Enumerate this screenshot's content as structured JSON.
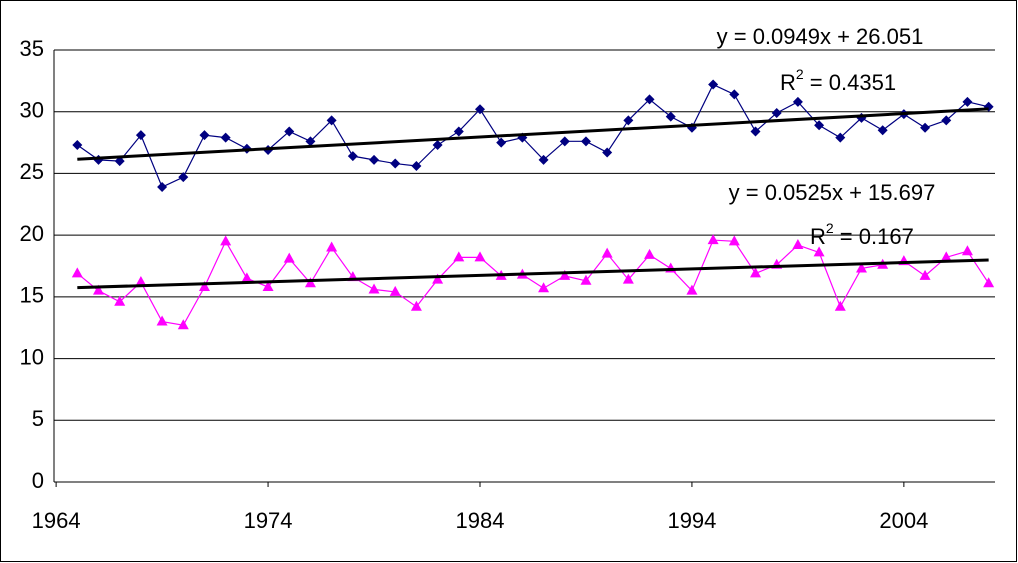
{
  "chart_data": {
    "type": "line",
    "x": [
      1965,
      1966,
      1967,
      1968,
      1969,
      1970,
      1971,
      1972,
      1973,
      1974,
      1975,
      1976,
      1977,
      1978,
      1979,
      1980,
      1981,
      1982,
      1983,
      1984,
      1985,
      1986,
      1987,
      1988,
      1989,
      1990,
      1991,
      1992,
      1993,
      1994,
      1995,
      1996,
      1997,
      1998,
      1999,
      2000,
      2001,
      2002,
      2003,
      2004,
      2005,
      2006,
      2007,
      2008
    ],
    "series": [
      {
        "color": "#000080",
        "marker": "diamond",
        "values": [
          27.3,
          26.1,
          26.0,
          28.1,
          23.9,
          24.7,
          28.1,
          27.9,
          27.0,
          26.9,
          28.4,
          27.6,
          29.3,
          26.4,
          26.1,
          25.8,
          25.6,
          27.3,
          28.4,
          30.2,
          27.5,
          27.9,
          26.1,
          27.6,
          27.6,
          26.7,
          29.3,
          31.0,
          29.6,
          28.7,
          32.2,
          31.4,
          28.4,
          29.9,
          30.8,
          28.9,
          27.9,
          29.5,
          28.5,
          29.8,
          28.7,
          29.3,
          30.8,
          30.4
        ]
      },
      {
        "color": "#ff00ff",
        "marker": "triangle",
        "values": [
          16.9,
          15.5,
          14.6,
          16.2,
          13.0,
          12.7,
          15.8,
          19.5,
          16.5,
          15.8,
          18.1,
          16.1,
          19.0,
          16.6,
          15.6,
          15.4,
          14.2,
          16.4,
          18.2,
          18.2,
          16.7,
          16.8,
          15.7,
          16.7,
          16.3,
          18.5,
          16.4,
          18.4,
          17.3,
          15.5,
          19.6,
          19.5,
          16.9,
          17.6,
          19.2,
          18.6,
          14.2,
          17.3,
          17.6,
          17.9,
          16.7,
          18.2,
          18.7,
          16.1
        ]
      }
    ],
    "trendlines": [
      {
        "color": "#000000",
        "x": [
          1965,
          2008
        ],
        "values": [
          26.146,
          30.227
        ],
        "equation": "y = 0.0949x + 26.051",
        "r2": {
          "base": "R",
          "sup": "2",
          "rest": " = 0.4351"
        }
      },
      {
        "color": "#000000",
        "x": [
          1965,
          2008
        ],
        "values": [
          15.75,
          17.99
        ],
        "equation": "y = 0.0525x + 15.697",
        "r2": {
          "base": "R",
          "sup": "2",
          "rest": " = 0.167"
        }
      }
    ],
    "xlim": [
      1963.9,
      2008.3
    ],
    "xticks": [
      1964,
      1974,
      1984,
      1994,
      2004
    ],
    "ylim": [
      0,
      35
    ],
    "yticks": [
      0,
      5,
      10,
      15,
      20,
      25,
      30,
      35
    ],
    "grid": true
  }
}
